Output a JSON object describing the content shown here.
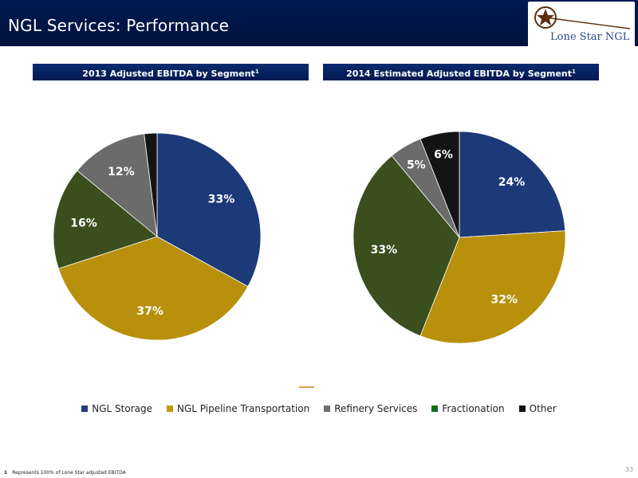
{
  "header": {
    "title": "NGL Services: Performance",
    "logo_text": "Lone Star NGL"
  },
  "chart_data": [
    {
      "type": "pie",
      "title": "2013 Adjusted EBITDA by Segment",
      "footnote_marker": "1",
      "slices": [
        {
          "label": "NGL Storage",
          "value": 33,
          "display": "33%",
          "color": "#1d3a78"
        },
        {
          "label": "NGL Pipeline Transportation",
          "value": 37,
          "display": "37%",
          "color": "#b8900c"
        },
        {
          "label": "Fractionation",
          "value": 16,
          "display": "16%",
          "color": "#3a4e1e"
        },
        {
          "label": "Refinery Services",
          "value": 12,
          "display": "12%",
          "color": "#6b6b6b"
        },
        {
          "label": "Other",
          "value": 2,
          "display": "",
          "color": "#141414"
        }
      ]
    },
    {
      "type": "pie",
      "title": "2014 Estimated Adjusted EBITDA by Segment",
      "footnote_marker": "1",
      "slices": [
        {
          "label": "NGL Storage",
          "value": 24,
          "display": "24%",
          "color": "#1d3a78"
        },
        {
          "label": "NGL Pipeline Transportation",
          "value": 32,
          "display": "32%",
          "color": "#b8900c"
        },
        {
          "label": "Fractionation",
          "value": 33,
          "display": "33%",
          "color": "#3a4e1e"
        },
        {
          "label": "Refinery Services",
          "value": 5,
          "display": "5%",
          "color": "#6b6b6b"
        },
        {
          "label": "Other",
          "value": 6,
          "display": "6%",
          "color": "#141414"
        }
      ]
    }
  ],
  "legend": [
    {
      "label": "NGL Storage",
      "color": "#1f3d7a"
    },
    {
      "label": "NGL Pipeline Transportation",
      "color": "#c49a0e"
    },
    {
      "label": "Refinery Services",
      "color": "#6e6e6e"
    },
    {
      "label": "Fractionation",
      "color": "#0e6e1e"
    },
    {
      "label": "Other",
      "color": "#111111"
    }
  ],
  "footnote": {
    "marker": "1",
    "text": "Represents 100% of Lone Star adjusted EBITDA"
  },
  "page_number": "33"
}
